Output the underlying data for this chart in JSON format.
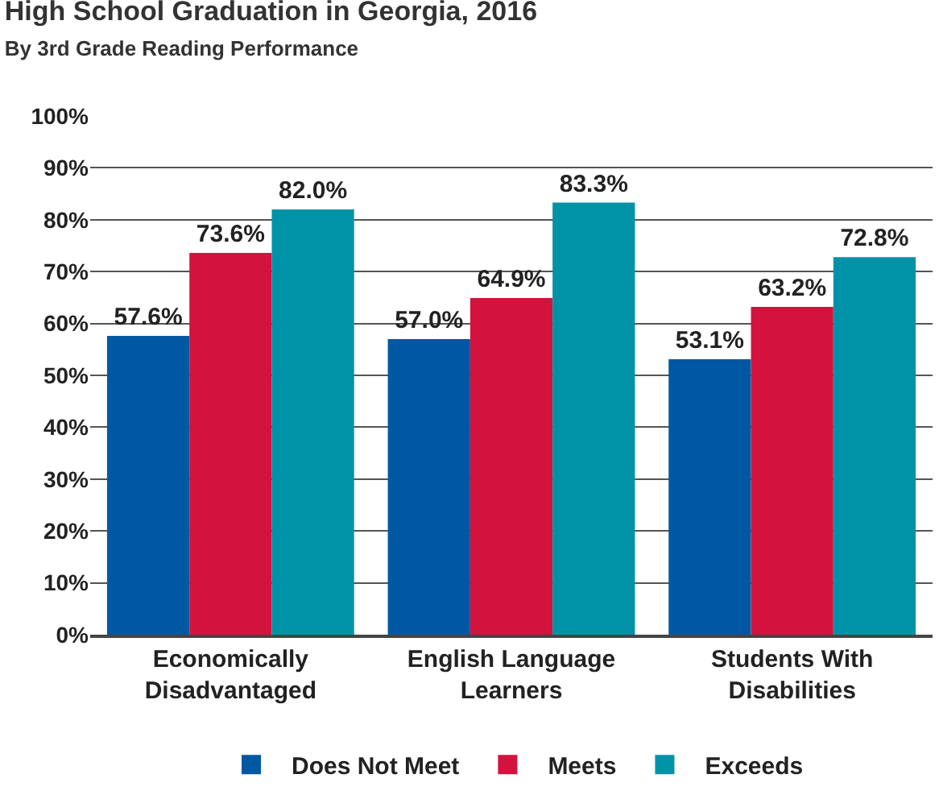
{
  "chart_data": {
    "type": "bar",
    "title": "High School Graduation in Georgia, 2016",
    "subtitle": "By 3rd Grade Reading Performance",
    "categories": [
      "Economically\nDisadvantaged",
      "English Language\nLearners",
      "Students With\nDisabilities"
    ],
    "series": [
      {
        "name": "Does Not Meet",
        "color": "#0058a3",
        "values": [
          57.6,
          57.0,
          53.1
        ],
        "value_labels": [
          "57.6%",
          "57.0%",
          "53.1%"
        ]
      },
      {
        "name": "Meets",
        "color": "#d3123d",
        "values": [
          73.6,
          64.9,
          63.2
        ],
        "value_labels": [
          "73.6%",
          "64.9%",
          "63.2%"
        ]
      },
      {
        "name": "Exceeds",
        "color": "#0093a8",
        "values": [
          82.0,
          83.3,
          72.8
        ],
        "value_labels": [
          "82.0%",
          "83.3%",
          "72.8%"
        ]
      }
    ],
    "ylim": [
      0,
      100
    ],
    "yticks": [
      {
        "value": 0,
        "label": "0%"
      },
      {
        "value": 10,
        "label": "10%"
      },
      {
        "value": 20,
        "label": "20%"
      },
      {
        "value": 30,
        "label": "30%"
      },
      {
        "value": 40,
        "label": "40%"
      },
      {
        "value": 50,
        "label": "50%"
      },
      {
        "value": 60,
        "label": "60%"
      },
      {
        "value": 70,
        "label": "70%"
      },
      {
        "value": 80,
        "label": "80%"
      },
      {
        "value": 90,
        "label": "90%"
      },
      {
        "value": 100,
        "label": "100%"
      }
    ],
    "grid": "y",
    "legend": "bottom"
  }
}
